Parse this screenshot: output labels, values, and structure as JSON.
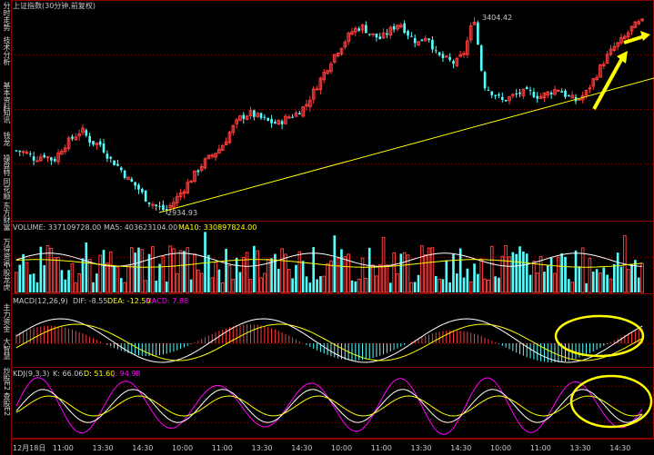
{
  "sidebar": {
    "tabs": [
      {
        "label": "分时走势"
      },
      {
        "label": "技术分析"
      },
      {
        "label": "基本资料"
      },
      {
        "label": "知讯"
      },
      {
        "label": "钱龙"
      },
      {
        "label": "操盘特"
      },
      {
        "label": "同花顺"
      },
      {
        "label": "东方财富"
      },
      {
        "label": "万得资讯"
      },
      {
        "label": "个股龙虎"
      },
      {
        "label": "主力资金"
      },
      {
        "label": "大智慧"
      },
      {
        "label": "炒股E2"
      },
      {
        "label": "查股E2"
      }
    ]
  },
  "colors": {
    "up": "#ff3c3c",
    "down": "#54ffff",
    "grid": "#8b0000",
    "ma5": "#ffffff",
    "ma10": "#ffff00",
    "dif": "#ffffff",
    "dea": "#ffff00",
    "k": "#ffffff",
    "d": "#ffff00",
    "j": "#ff00ff",
    "trendline": "#ffff00",
    "annotation_ellipse": "#ffff00",
    "arrow": "#ffff00"
  },
  "price_panel": {
    "title": "上证指数(30分钟,前复权)",
    "high_label": "3404.42",
    "low_label": "2934.93"
  },
  "volume_panel": {
    "label": "VOLUME: 337109728.00",
    "ma5_label": "MA5: 403623104.00",
    "ma10_label": "MA10: 330897824.00"
  },
  "macd_panel": {
    "label": "MACD(12,26,9)",
    "dif_label": "DIF: -8.55",
    "dea_label": "DEA: -12.50",
    "macd_label": "MACD: 7.88"
  },
  "kdj_panel": {
    "label": "KDJ(9,3,3)",
    "k_label": "K: 66.06",
    "d_label": "D: 51.60",
    "j_label": "J: 94.98"
  },
  "time_axis": {
    "labels": [
      "12月18日",
      "11:00",
      "13:30",
      "14:30",
      "10:00",
      "11:00",
      "13:30",
      "14:30",
      "10:00",
      "11:00",
      "13:30",
      "14:30",
      "10:00",
      "11:00",
      "13:30",
      "14:30"
    ]
  },
  "chart_data": {
    "type": "candlestick",
    "price_high": 3404.42,
    "price_low": 2934.93,
    "close_path": [
      3080,
      3075,
      3060,
      3070,
      3055,
      3090,
      3110,
      3130,
      3100,
      3095,
      3060,
      3040,
      3010,
      2990,
      2960,
      2945,
      2935,
      2960,
      2990,
      3020,
      3050,
      3070,
      3090,
      3130,
      3160,
      3170,
      3160,
      3150,
      3145,
      3160,
      3170,
      3190,
      3230,
      3270,
      3310,
      3340,
      3370,
      3380,
      3360,
      3350,
      3370,
      3390,
      3360,
      3340,
      3360,
      3310,
      3300,
      3290,
      3320,
      3404,
      3240,
      3220,
      3200,
      3210,
      3220,
      3220,
      3210,
      3220,
      3230,
      3210,
      3200,
      3220,
      3260,
      3300,
      3330,
      3350,
      3380,
      3390
    ]
  }
}
